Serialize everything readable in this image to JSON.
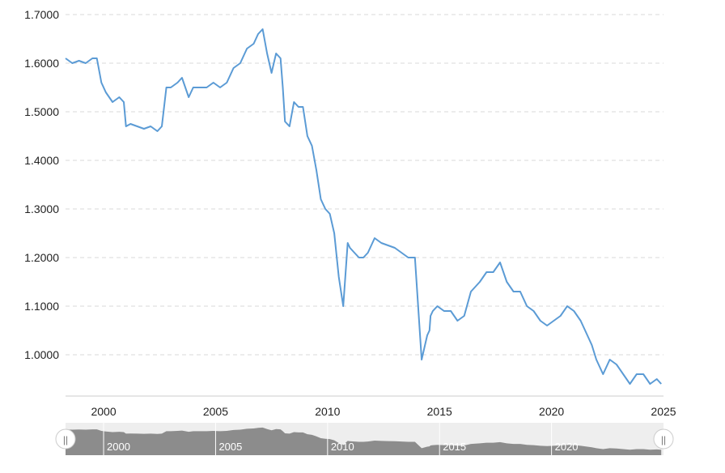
{
  "chart_data": {
    "type": "line",
    "title": "",
    "xlabel": "",
    "ylabel": "",
    "ylim": [
      0.92,
      1.72
    ],
    "xlim": [
      1998.3,
      2025.0
    ],
    "grid": true,
    "yticks": [
      {
        "value": 1.0,
        "label": "1.0000"
      },
      {
        "value": 1.1,
        "label": "1.1000"
      },
      {
        "value": 1.2,
        "label": "1.2000"
      },
      {
        "value": 1.3,
        "label": "1.3000"
      },
      {
        "value": 1.4,
        "label": "1.4000"
      },
      {
        "value": 1.5,
        "label": "1.5000"
      },
      {
        "value": 1.6,
        "label": "1.6000"
      },
      {
        "value": 1.7,
        "label": "1.7000"
      }
    ],
    "xticks": [
      {
        "value": 2000,
        "label": "2000"
      },
      {
        "value": 2005,
        "label": "2005"
      },
      {
        "value": 2010,
        "label": "2010"
      },
      {
        "value": 2015,
        "label": "2015"
      },
      {
        "value": 2020,
        "label": "2020"
      },
      {
        "value": 2025,
        "label": "2025"
      }
    ],
    "series": [
      {
        "color": "#5b9bd5",
        "x": [
          1998.3,
          1998.6,
          1998.9,
          1999.2,
          1999.5,
          1999.7,
          1999.9,
          2000.1,
          2000.4,
          2000.7,
          2000.9,
          2001.0,
          2001.2,
          2001.5,
          2001.8,
          2002.1,
          2002.4,
          2002.6,
          2002.8,
          2003.0,
          2003.3,
          2003.5,
          2003.8,
          2004.0,
          2004.3,
          2004.6,
          2004.9,
          2005.2,
          2005.5,
          2005.8,
          2006.1,
          2006.4,
          2006.7,
          2006.9,
          2007.1,
          2007.3,
          2007.5,
          2007.7,
          2007.9,
          2008.0,
          2008.1,
          2008.3,
          2008.5,
          2008.7,
          2008.9,
          2009.1,
          2009.3,
          2009.5,
          2009.7,
          2009.9,
          2010.1,
          2010.3,
          2010.5,
          2010.7,
          2010.9,
          2011.0,
          2011.2,
          2011.4,
          2011.6,
          2011.8,
          2012.1,
          2012.4,
          2012.7,
          2013.0,
          2013.3,
          2013.6,
          2013.9,
          2014.2,
          2014.45,
          2014.55,
          2014.6,
          2014.7,
          2014.9,
          2015.2,
          2015.5,
          2015.8,
          2016.1,
          2016.4,
          2016.8,
          2017.1,
          2017.4,
          2017.7,
          2018.0,
          2018.3,
          2018.6,
          2018.9,
          2019.2,
          2019.5,
          2019.8,
          2020.1,
          2020.4,
          2020.7,
          2021.0,
          2021.3,
          2021.6,
          2021.8,
          2022.0,
          2022.3,
          2022.6,
          2022.9,
          2023.2,
          2023.5,
          2023.8,
          2024.1,
          2024.4,
          2024.7,
          2024.9
        ],
        "y": [
          1.61,
          1.6,
          1.605,
          1.6,
          1.61,
          1.61,
          1.56,
          1.54,
          1.52,
          1.53,
          1.52,
          1.47,
          1.475,
          1.47,
          1.465,
          1.47,
          1.46,
          1.47,
          1.55,
          1.55,
          1.56,
          1.57,
          1.53,
          1.55,
          1.55,
          1.55,
          1.56,
          1.55,
          1.56,
          1.59,
          1.6,
          1.63,
          1.64,
          1.66,
          1.67,
          1.62,
          1.58,
          1.62,
          1.61,
          1.55,
          1.48,
          1.47,
          1.52,
          1.51,
          1.51,
          1.45,
          1.43,
          1.38,
          1.32,
          1.3,
          1.29,
          1.25,
          1.16,
          1.1,
          1.23,
          1.22,
          1.21,
          1.2,
          1.2,
          1.21,
          1.24,
          1.23,
          1.225,
          1.22,
          1.21,
          1.2,
          1.2,
          0.99,
          1.04,
          1.05,
          1.08,
          1.09,
          1.1,
          1.09,
          1.09,
          1.07,
          1.08,
          1.13,
          1.15,
          1.17,
          1.17,
          1.19,
          1.15,
          1.13,
          1.13,
          1.1,
          1.09,
          1.07,
          1.06,
          1.07,
          1.08,
          1.1,
          1.09,
          1.07,
          1.04,
          1.02,
          0.99,
          0.96,
          0.99,
          0.98,
          0.96,
          0.94,
          0.96,
          0.96,
          0.94,
          0.95,
          0.94
        ]
      }
    ],
    "navigator": {
      "ticks": [
        "2000",
        "2005",
        "2010",
        "2015",
        "2020"
      ],
      "handle_left": "||",
      "handle_right": "||"
    }
  }
}
